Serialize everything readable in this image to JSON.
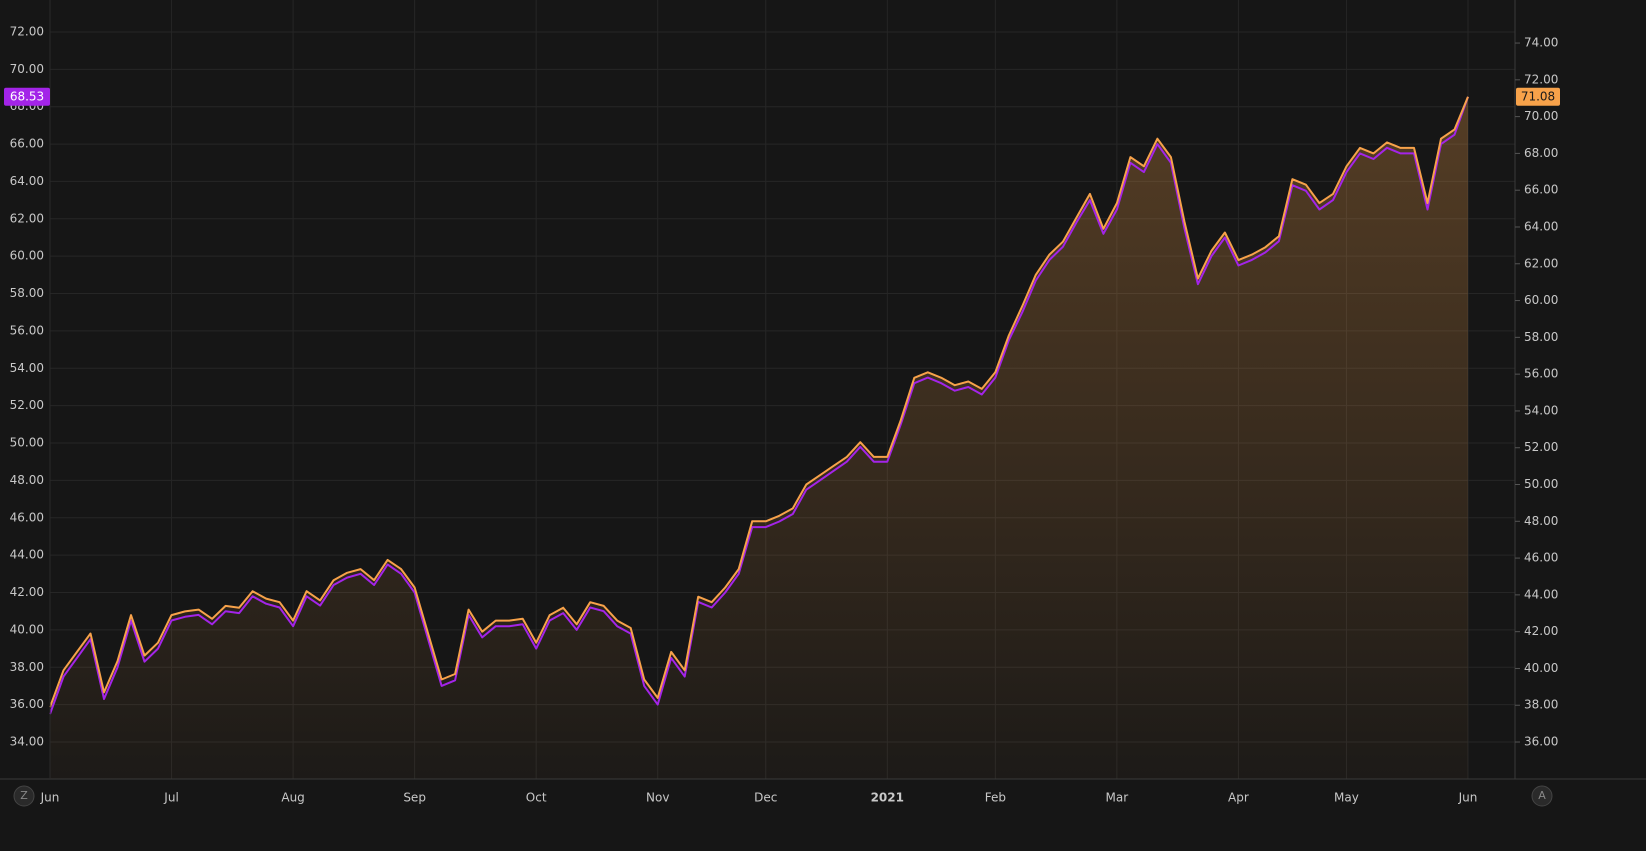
{
  "chart_data": {
    "type": "line",
    "categories": [
      "Jun",
      null,
      null,
      null,
      null,
      null,
      null,
      null,
      null,
      "Jul",
      null,
      null,
      null,
      null,
      null,
      null,
      null,
      null,
      "Aug",
      null,
      null,
      null,
      null,
      null,
      null,
      null,
      null,
      "Sep",
      null,
      null,
      null,
      null,
      null,
      null,
      null,
      null,
      "Oct",
      null,
      null,
      null,
      null,
      null,
      null,
      null,
      null,
      "Nov",
      null,
      null,
      null,
      null,
      null,
      null,
      null,
      "Dec",
      null,
      null,
      null,
      null,
      null,
      null,
      null,
      null,
      "2021",
      null,
      null,
      null,
      null,
      null,
      null,
      null,
      "Feb",
      null,
      null,
      null,
      null,
      null,
      null,
      null,
      null,
      "Mar",
      null,
      null,
      null,
      null,
      null,
      null,
      null,
      null,
      "Apr",
      null,
      null,
      null,
      null,
      null,
      null,
      null,
      "May",
      null,
      null,
      null,
      null,
      null,
      null,
      null,
      null,
      "Jun"
    ],
    "series": [
      {
        "color": "#a324e8",
        "axis": "y",
        "values": [
          35.5,
          37.5,
          38.5,
          39.5,
          36.3,
          38.0,
          40.5,
          38.3,
          39.0,
          40.5,
          40.7,
          40.8,
          40.3,
          41.0,
          40.9,
          41.8,
          41.4,
          41.2,
          40.2,
          41.8,
          41.3,
          42.4,
          42.8,
          43.0,
          42.4,
          43.5,
          43.0,
          42.0,
          39.5,
          37.0,
          37.3,
          40.8,
          39.6,
          40.2,
          40.2,
          40.3,
          39.0,
          40.5,
          40.9,
          40.0,
          41.2,
          41.0,
          40.2,
          39.8,
          37.0,
          36.0,
          38.5,
          37.5,
          41.5,
          41.2,
          42.0,
          43.0,
          45.5,
          45.5,
          45.8,
          46.2,
          47.5,
          48.0,
          48.5,
          49.0,
          49.8,
          49.0,
          49.0,
          51.0,
          53.2,
          53.5,
          53.2,
          52.8,
          53.0,
          52.6,
          53.5,
          55.5,
          57.0,
          58.7,
          59.8,
          60.5,
          61.8,
          63.0,
          61.2,
          62.5,
          65.0,
          64.5,
          66.0,
          65.0,
          61.5,
          58.5,
          60.0,
          61.0,
          59.5,
          59.8,
          60.2,
          60.8,
          63.8,
          63.5,
          62.5,
          63.0,
          64.5,
          65.5,
          65.2,
          65.8,
          65.5,
          65.5,
          62.5,
          66.0,
          66.5,
          68.53
        ]
      },
      {
        "color": "#f7a24a",
        "axis": "y2",
        "values": [
          37.9,
          39.9,
          40.9,
          41.9,
          38.7,
          40.4,
          42.9,
          40.7,
          41.4,
          42.9,
          43.1,
          43.2,
          42.7,
          43.4,
          43.3,
          44.2,
          43.8,
          43.6,
          42.6,
          44.2,
          43.7,
          44.8,
          45.2,
          45.4,
          44.8,
          45.9,
          45.4,
          44.4,
          41.9,
          39.4,
          39.7,
          43.2,
          42.0,
          42.6,
          42.6,
          42.7,
          41.4,
          42.9,
          43.3,
          42.4,
          43.6,
          43.4,
          42.6,
          42.2,
          39.4,
          38.4,
          40.9,
          39.9,
          43.9,
          43.6,
          44.4,
          45.4,
          48.0,
          48.0,
          48.3,
          48.7,
          50.0,
          50.5,
          51.0,
          51.5,
          52.3,
          51.5,
          51.5,
          53.5,
          55.8,
          56.1,
          55.8,
          55.4,
          55.6,
          55.2,
          56.1,
          58.1,
          59.7,
          61.4,
          62.5,
          63.2,
          64.5,
          65.8,
          63.9,
          65.3,
          67.8,
          67.3,
          68.8,
          67.8,
          64.3,
          61.2,
          62.7,
          63.7,
          62.2,
          62.5,
          62.9,
          63.5,
          66.6,
          66.3,
          65.3,
          65.8,
          67.3,
          68.3,
          68.0,
          68.6,
          68.3,
          68.3,
          65.3,
          68.8,
          69.3,
          71.08
        ]
      }
    ],
    "ylim": [
      32.02,
      73.71
    ],
    "yticks": [
      {
        "value": 34,
        "label": "34.00"
      },
      {
        "value": 36,
        "label": "36.00"
      },
      {
        "value": 38,
        "label": "38.00"
      },
      {
        "value": 40,
        "label": "40.00"
      },
      {
        "value": 42,
        "label": "42.00"
      },
      {
        "value": 44,
        "label": "44.00"
      },
      {
        "value": 46,
        "label": "46.00"
      },
      {
        "value": 48,
        "label": "48.00"
      },
      {
        "value": 50,
        "label": "50.00"
      },
      {
        "value": 52,
        "label": "52.00"
      },
      {
        "value": 54,
        "label": "54.00"
      },
      {
        "value": 56,
        "label": "56.00"
      },
      {
        "value": 58,
        "label": "58.00"
      },
      {
        "value": 60,
        "label": "60.00"
      },
      {
        "value": 62,
        "label": "62.00"
      },
      {
        "value": 64,
        "label": "64.00"
      },
      {
        "value": 66,
        "label": "66.00"
      },
      {
        "value": 68,
        "label": "68.00"
      },
      {
        "value": 70,
        "label": "70.00"
      },
      {
        "value": 72,
        "label": "72.00"
      }
    ],
    "y2lim": [
      33.99,
      76.34
    ],
    "y2ticks": [
      {
        "value": 36,
        "label": "36.00"
      },
      {
        "value": 38,
        "label": "38.00"
      },
      {
        "value": 40,
        "label": "40.00"
      },
      {
        "value": 42,
        "label": "42.00"
      },
      {
        "value": 44,
        "label": "44.00"
      },
      {
        "value": 46,
        "label": "46.00"
      },
      {
        "value": 48,
        "label": "48.00"
      },
      {
        "value": 50,
        "label": "50.00"
      },
      {
        "value": 52,
        "label": "52.00"
      },
      {
        "value": 54,
        "label": "54.00"
      },
      {
        "value": 56,
        "label": "56.00"
      },
      {
        "value": 58,
        "label": "58.00"
      },
      {
        "value": 60,
        "label": "60.00"
      },
      {
        "value": 62,
        "label": "62.00"
      },
      {
        "value": 64,
        "label": "64.00"
      },
      {
        "value": 66,
        "label": "66.00"
      },
      {
        "value": 68,
        "label": "68.00"
      },
      {
        "value": 70,
        "label": "70.00"
      },
      {
        "value": 72,
        "label": "72.00"
      },
      {
        "value": 74,
        "label": "74.00"
      }
    ],
    "grid": true,
    "buttons": [
      "Z",
      "A"
    ]
  }
}
